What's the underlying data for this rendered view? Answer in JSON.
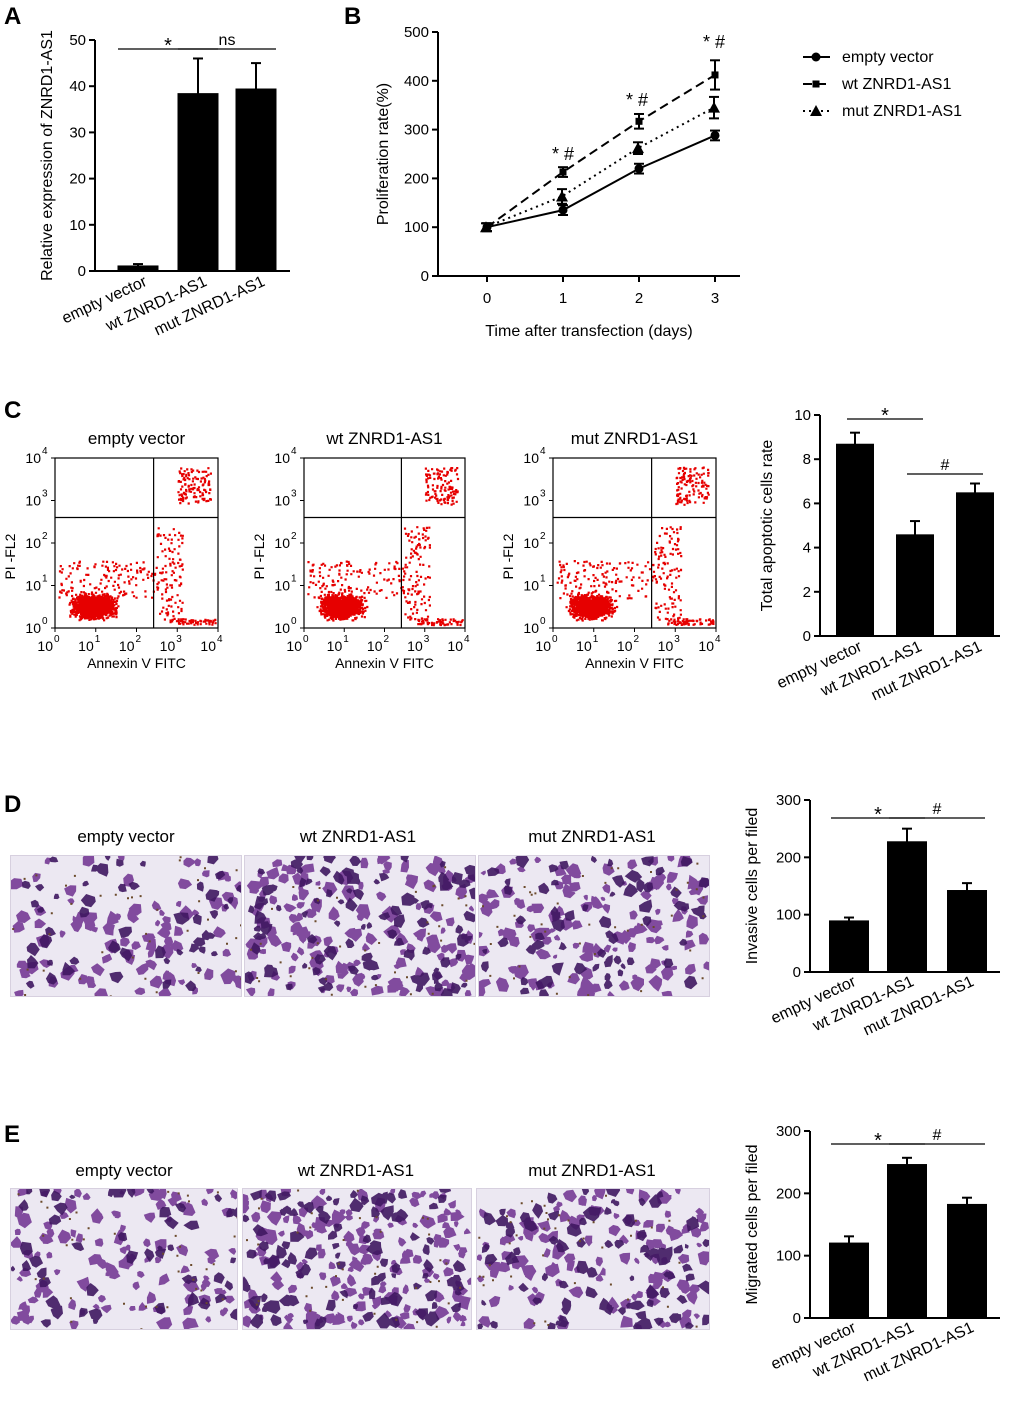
{
  "colors": {
    "ink": "#000000",
    "dot_red": "#e60000",
    "cell_purple": "#6f2f8f",
    "cell_dark": "#3f1760",
    "photo_background": "#ece8f2",
    "debris_brown": "#6b4a2b"
  },
  "panels": {
    "a": {
      "label": "A"
    },
    "b": {
      "label": "B"
    },
    "c": {
      "label": "C"
    },
    "d": {
      "label": "D"
    },
    "e": {
      "label": "E"
    }
  },
  "groups": [
    "empty vector",
    "wt ZNRD1-AS1",
    "mut ZNRD1-AS1"
  ],
  "flow": {
    "titles": [
      "empty vector",
      "wt ZNRD1-AS1",
      "mut ZNRD1-AS1"
    ],
    "xlabel": "Annexin V FITC",
    "ylabel": "PI -FL2",
    "tick_bases": [
      "10",
      "10",
      "10",
      "10",
      "10"
    ],
    "tick_exponents": [
      "0",
      "1",
      "2",
      "3",
      "4"
    ]
  },
  "micrographs": {
    "d_titles": [
      "empty vector",
      "wt ZNRD1-AS1",
      "mut ZNRD1-AS1"
    ],
    "e_titles": [
      "empty vector",
      "wt ZNRD1-AS1",
      "mut ZNRD1-AS1"
    ],
    "d_density": [
      0.55,
      1.0,
      0.75
    ],
    "e_density": [
      0.6,
      1.0,
      0.8
    ]
  },
  "chart_data": [
    {
      "panel": "A",
      "type": "bar",
      "categories": [
        "empty vector",
        "wt ZNRD1-AS1",
        "mut ZNRD1-AS1"
      ],
      "values": [
        1.2,
        38.5,
        39.5
      ],
      "errors": [
        0.3,
        7.5,
        5.5
      ],
      "ylabel": "Relative expression of ZNRD1-AS1",
      "ylim": [
        0,
        50
      ],
      "yticks": [
        "0",
        "10",
        "20",
        "30",
        "40",
        "50"
      ],
      "annotations": [
        {
          "text": "*",
          "from": 0,
          "to": 1
        },
        {
          "text": "ns",
          "from": 1,
          "to": 2
        }
      ]
    },
    {
      "panel": "B",
      "type": "line",
      "x": [
        0,
        1,
        2,
        3
      ],
      "xticks": [
        "0",
        "1",
        "2",
        "3"
      ],
      "xlabel": "Time after transfection (days)",
      "ylabel": "Proliferation rate(%)",
      "ylim": [
        0,
        500
      ],
      "yticks": [
        "0",
        "100",
        "200",
        "300",
        "400",
        "500"
      ],
      "legend_position": "right",
      "series": [
        {
          "name": "empty vector",
          "marker": "circle",
          "style": "solid",
          "values": [
            100,
            135,
            220,
            288
          ],
          "errors": [
            8,
            10,
            10,
            10
          ]
        },
        {
          "name": "wt ZNRD1-AS1",
          "marker": "square",
          "style": "dashed",
          "values": [
            100,
            213,
            317,
            412
          ],
          "errors": [
            8,
            10,
            15,
            30
          ]
        },
        {
          "name": "mut ZNRD1-AS1",
          "marker": "triangle",
          "style": "dotted",
          "values": [
            100,
            163,
            262,
            345
          ],
          "errors": [
            8,
            15,
            12,
            22
          ]
        }
      ],
      "annotations": [
        "* #",
        "* #",
        "* #"
      ]
    },
    {
      "panel": "C",
      "type": "bar",
      "categories": [
        "empty vector",
        "wt ZNRD1-AS1",
        "mut ZNRD1-AS1"
      ],
      "values": [
        8.7,
        4.6,
        6.5
      ],
      "errors": [
        0.5,
        0.6,
        0.4
      ],
      "ylabel": "Total apoptotic cells rate",
      "ylim": [
        0,
        10
      ],
      "yticks": [
        "0",
        "2",
        "4",
        "6",
        "8",
        "10"
      ],
      "annotations": [
        {
          "text": "*",
          "from": 0,
          "to": 1
        },
        {
          "text": "#",
          "from": 1,
          "to": 2
        }
      ]
    },
    {
      "panel": "D",
      "type": "bar",
      "categories": [
        "empty vector",
        "wt ZNRD1-AS1",
        "mut ZNRD1-AS1"
      ],
      "values": [
        90,
        228,
        143
      ],
      "errors": [
        5,
        22,
        12
      ],
      "ylabel": "Invasive cells per filed",
      "ylim": [
        0,
        300
      ],
      "yticks": [
        "0",
        "100",
        "200",
        "300"
      ],
      "annotations": [
        {
          "text": "*",
          "from": 0,
          "to": 1
        },
        {
          "text": "#",
          "from": 1,
          "to": 2
        }
      ]
    },
    {
      "panel": "E",
      "type": "bar",
      "categories": [
        "empty vector",
        "wt ZNRD1-AS1",
        "mut ZNRD1-AS1"
      ],
      "values": [
        121,
        247,
        183
      ],
      "errors": [
        10,
        10,
        10
      ],
      "ylabel": "Migrated cells per filed",
      "ylim": [
        0,
        300
      ],
      "yticks": [
        "0",
        "100",
        "200",
        "300"
      ],
      "annotations": [
        {
          "text": "*",
          "from": 0,
          "to": 1
        },
        {
          "text": "#",
          "from": 1,
          "to": 2
        }
      ]
    }
  ]
}
